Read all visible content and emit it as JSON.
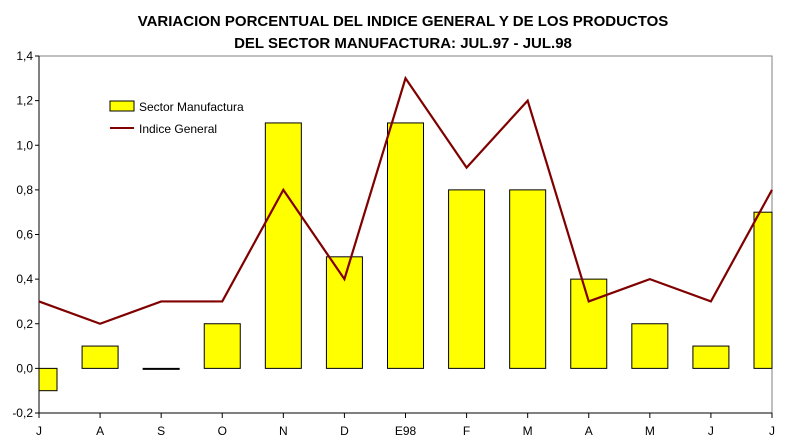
{
  "chart_data": {
    "type": "bar",
    "title": "VARIACION PORCENTUAL DEL INDICE GENERAL Y DE LOS PRODUCTOS",
    "subtitle": "DEL SECTOR MANUFACTURA: JUL.97 - JUL.98",
    "categories": [
      "J",
      "A",
      "S",
      "O",
      "N",
      "D",
      "E98",
      "F",
      "M",
      "A",
      "M",
      "J",
      "J"
    ],
    "ylim": [
      -0.2,
      1.4
    ],
    "yticks": [
      "-0,2",
      "0,0",
      "0,2",
      "0,4",
      "0,6",
      "0,8",
      "1,0",
      "1,2",
      "1,4"
    ],
    "grid": false,
    "legend": "upper-left",
    "series": [
      {
        "name": "Sector Manufactura",
        "type": "bar",
        "color": "#ffff00",
        "values": [
          -0.1,
          0.1,
          0.0,
          0.2,
          1.1,
          0.5,
          1.1,
          0.8,
          0.8,
          0.4,
          0.2,
          0.1,
          0.7
        ]
      },
      {
        "name": "Indice General",
        "type": "line",
        "color": "#800000",
        "values": [
          0.3,
          0.2,
          0.3,
          0.3,
          0.8,
          0.4,
          1.3,
          0.9,
          1.2,
          0.3,
          0.4,
          0.3,
          0.8
        ]
      }
    ]
  }
}
